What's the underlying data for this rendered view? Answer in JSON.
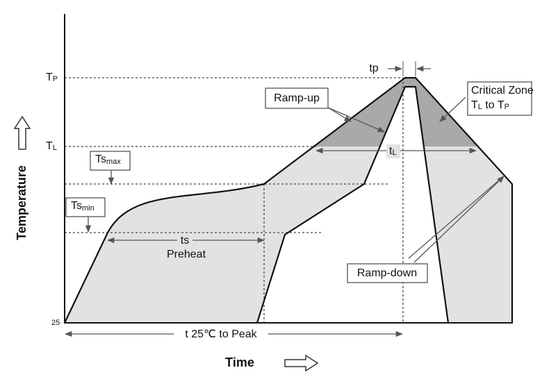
{
  "axes": {
    "y_label": "Temperature",
    "x_label": "Time",
    "origin": "25",
    "tp": {
      "main": "T",
      "sub": "P"
    },
    "tl": {
      "main": "T",
      "sub": "L"
    },
    "ts_max": {
      "main": "Ts",
      "sub": "max"
    },
    "ts_min": {
      "main": "Ts",
      "sub": "min"
    }
  },
  "annotations": {
    "tp_width": "tp",
    "ramp_up": "Ramp-up",
    "critical_zone": {
      "line1": "Critical Zone",
      "line2": {
        "a": "T",
        "a_sub": "L",
        "mid": " to ",
        "b": "T",
        "b_sub": "P"
      }
    },
    "tl_span": {
      "main": "t",
      "sub": "L"
    },
    "ts_span": "ts",
    "preheat": "Preheat",
    "ramp_down": "Ramp-down",
    "total": "t 25℃ to Peak"
  }
}
